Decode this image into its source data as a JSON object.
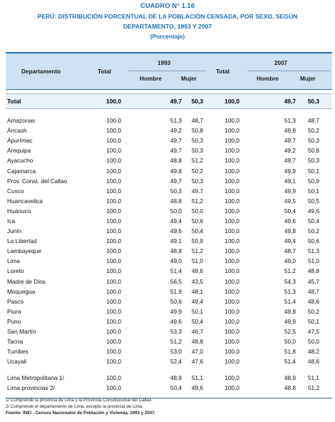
{
  "title": {
    "line1": "CUADRO N° 1.16",
    "line2": "PERÚ: DISTRIBUCIÓN PORCENTUAL DE LA POBLACIÓN CENSADA, POR SEXO, SEGÚN",
    "line3": "DEPARTAMENTO, 1993 Y 2007",
    "line4": "(Porcentaje)"
  },
  "header": {
    "departamento": "Departamento",
    "total_1993": "Total",
    "year_1993": "1993",
    "hombre_1993": "Hombre",
    "mujer_1993": "Mujer",
    "total_2007": "Total",
    "year_2007": "2007",
    "hombre_2007": "Hombre",
    "mujer_2007": "Mujer"
  },
  "total_row": {
    "dep": "Total",
    "t93": "100,0",
    "h93": "49,7",
    "m93": "50,3",
    "t07": "100,0",
    "h07": "49,7",
    "m07": "50,3"
  },
  "rows": [
    {
      "dep": "Amazonas",
      "t93": "100,0",
      "h93": "51,3",
      "m93": "48,7",
      "t07": "100,0",
      "h07": "51,3",
      "m07": "48,7"
    },
    {
      "dep": "Áncash",
      "t93": "100,0",
      "h93": "49,2",
      "m93": "50,8",
      "t07": "100,0",
      "h07": "49,8",
      "m07": "50,2"
    },
    {
      "dep": "Apurímac",
      "t93": "100,0",
      "h93": "49,7",
      "m93": "50,3",
      "t07": "100,0",
      "h07": "49,7",
      "m07": "50,3"
    },
    {
      "dep": "Arequipa",
      "t93": "100,0",
      "h93": "49,7",
      "m93": "50,3",
      "t07": "100,0",
      "h07": "49,2",
      "m07": "50,8"
    },
    {
      "dep": "Ayacucho",
      "t93": "100,0",
      "h93": "48,8",
      "m93": "51,2",
      "t07": "100,0",
      "h07": "49,7",
      "m07": "50,3"
    },
    {
      "dep": "Cajamarca",
      "t93": "100,0",
      "h93": "49,8",
      "m93": "50,2",
      "t07": "100,0",
      "h07": "49,9",
      "m07": "50,1"
    },
    {
      "dep": "Prov. Const. del Callao",
      "t93": "100,0",
      "h93": "49,7",
      "m93": "50,3",
      "t07": "100,0",
      "h07": "49,1",
      "m07": "50,9"
    },
    {
      "dep": "Cusco",
      "t93": "100,0",
      "h93": "50,3",
      "m93": "49,7",
      "t07": "100,0",
      "h07": "49,9",
      "m07": "50,1"
    },
    {
      "dep": "Huancavelica",
      "t93": "100,0",
      "h93": "48,8",
      "m93": "51,2",
      "t07": "100,0",
      "h07": "49,5",
      "m07": "50,5"
    },
    {
      "dep": "Huánuco",
      "t93": "100,0",
      "h93": "50,0",
      "m93": "50,0",
      "t07": "100,0",
      "h07": "50,4",
      "m07": "49,6"
    },
    {
      "dep": "Ica",
      "t93": "100,0",
      "h93": "49,4",
      "m93": "50,6",
      "t07": "100,0",
      "h07": "49,6",
      "m07": "50,4"
    },
    {
      "dep": "Junín",
      "t93": "100,0",
      "h93": "49,6",
      "m93": "50,4",
      "t07": "100,0",
      "h07": "49,8",
      "m07": "50,2"
    },
    {
      "dep": "La Libertad",
      "t93": "100,0",
      "h93": "49,1",
      "m93": "50,9",
      "t07": "100,0",
      "h07": "49,4",
      "m07": "50,6"
    },
    {
      "dep": "Lambayeque",
      "t93": "100,0",
      "h93": "48,8",
      "m93": "51,2",
      "t07": "100,0",
      "h07": "48,7",
      "m07": "51,3"
    },
    {
      "dep": "Lima",
      "t93": "100,0",
      "h93": "49,0",
      "m93": "51,0",
      "t07": "100,0",
      "h07": "49,0",
      "m07": "51,0"
    },
    {
      "dep": "Loreto",
      "t93": "100,0",
      "h93": "51,4",
      "m93": "48,6",
      "t07": "100,0",
      "h07": "51,2",
      "m07": "48,8"
    },
    {
      "dep": "Madre de Dios",
      "t93": "100,0",
      "h93": "56,5",
      "m93": "43,5",
      "t07": "100,0",
      "h07": "54,3",
      "m07": "45,7"
    },
    {
      "dep": "Moquegua",
      "t93": "100,0",
      "h93": "51,9",
      "m93": "48,1",
      "t07": "100,0",
      "h07": "51,3",
      "m07": "48,7"
    },
    {
      "dep": "Pasco",
      "t93": "100,0",
      "h93": "50,6",
      "m93": "49,4",
      "t07": "100,0",
      "h07": "51,4",
      "m07": "48,6"
    },
    {
      "dep": "Piura",
      "t93": "100,0",
      "h93": "49,9",
      "m93": "50,1",
      "t07": "100,0",
      "h07": "49,8",
      "m07": "50,2"
    },
    {
      "dep": "Puno",
      "t93": "100,0",
      "h93": "49,6",
      "m93": "50,4",
      "t07": "100,0",
      "h07": "49,9",
      "m07": "50,1"
    },
    {
      "dep": "San Martín",
      "t93": "100,0",
      "h93": "53,3",
      "m93": "46,7",
      "t07": "100,0",
      "h07": "52,5",
      "m07": "47,5"
    },
    {
      "dep": "Tacna",
      "t93": "100,0",
      "h93": "51,2",
      "m93": "48,8",
      "t07": "100,0",
      "h07": "50,0",
      "m07": "50,0"
    },
    {
      "dep": "Tumbes",
      "t93": "100,0",
      "h93": "53,0",
      "m93": "47,0",
      "t07": "100,0",
      "h07": "51,8",
      "m07": "48,2"
    },
    {
      "dep": "Ucayali",
      "t93": "100,0",
      "h93": "52,4",
      "m93": "47,6",
      "t07": "100,0",
      "h07": "51,4",
      "m07": "48,6"
    }
  ],
  "extra_rows": [
    {
      "dep": "Lima Metropolitana 1/",
      "t93": "100,0",
      "h93": "48,9",
      "m93": "51,1",
      "t07": "100,0",
      "h07": "48,9",
      "m07": "51,1"
    },
    {
      "dep": "Lima provincias 2/",
      "t93": "100,0",
      "h93": "50,4",
      "m93": "49,6",
      "t07": "100,0",
      "h07": "48,8",
      "m07": "51,2"
    }
  ],
  "notes": {
    "n1": "1/ Comprende la provincia de Lima y la Provincia Constitucional del Callao.",
    "n2": "2/ Comprende el departamento de Lima, excepto la provincia de Lima.",
    "source": "Fuente: INEI - Censos Nacionales de Población y Vivienda, 1993 y 2007."
  }
}
